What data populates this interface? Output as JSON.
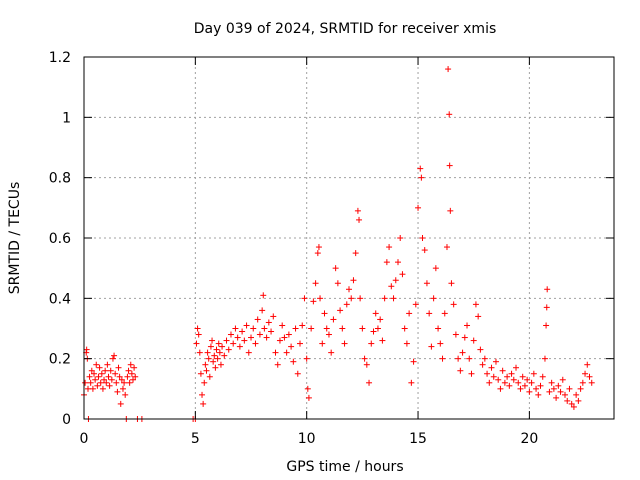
{
  "chart_data": {
    "type": "scatter",
    "title": "Day 039 of 2024, SRMTID for receiver xmis",
    "xlabel": "GPS time / hours",
    "ylabel": "SRMTID / TECUs",
    "xlim": [
      0,
      23.8
    ],
    "ylim": [
      0,
      1.2
    ],
    "xticks": [
      0,
      5,
      10,
      15,
      20
    ],
    "xtick_labels": [
      "0",
      "5",
      "10",
      "15",
      "20"
    ],
    "yticks": [
      0,
      0.2,
      0.4,
      0.6,
      0.8,
      1,
      1.2
    ],
    "ytick_labels": [
      "0",
      "0.2",
      "0.4",
      "0.6",
      "0.8",
      "1",
      "1.2"
    ],
    "grid": true,
    "marker": "+",
    "color": "#ff0000",
    "series": [
      {
        "name": "SRMTID",
        "points": [
          [
            0.0,
            0.08
          ],
          [
            0.05,
            0.12
          ],
          [
            0.1,
            0.22
          ],
          [
            0.12,
            0.23
          ],
          [
            0.15,
            0.2
          ],
          [
            0.18,
            0.1
          ],
          [
            0.2,
            0.0
          ],
          [
            0.25,
            0.14
          ],
          [
            0.3,
            0.12
          ],
          [
            0.35,
            0.16
          ],
          [
            0.4,
            0.1
          ],
          [
            0.45,
            0.15
          ],
          [
            0.5,
            0.13
          ],
          [
            0.55,
            0.18
          ],
          [
            0.6,
            0.11
          ],
          [
            0.65,
            0.14
          ],
          [
            0.7,
            0.17
          ],
          [
            0.75,
            0.12
          ],
          [
            0.8,
            0.15
          ],
          [
            0.85,
            0.1
          ],
          [
            0.9,
            0.13
          ],
          [
            0.95,
            0.16
          ],
          [
            1.0,
            0.12
          ],
          [
            1.05,
            0.18
          ],
          [
            1.1,
            0.14
          ],
          [
            1.15,
            0.11
          ],
          [
            1.2,
            0.16
          ],
          [
            1.25,
            0.13
          ],
          [
            1.3,
            0.2
          ],
          [
            1.35,
            0.21
          ],
          [
            1.4,
            0.15
          ],
          [
            1.45,
            0.12
          ],
          [
            1.5,
            0.09
          ],
          [
            1.55,
            0.17
          ],
          [
            1.6,
            0.14
          ],
          [
            1.65,
            0.05
          ],
          [
            1.7,
            0.13
          ],
          [
            1.75,
            0.1
          ],
          [
            1.8,
            0.12
          ],
          [
            1.85,
            0.08
          ],
          [
            1.9,
            0.0
          ],
          [
            1.95,
            0.14
          ],
          [
            2.0,
            0.16
          ],
          [
            2.05,
            0.12
          ],
          [
            2.1,
            0.18
          ],
          [
            2.15,
            0.15
          ],
          [
            2.2,
            0.13
          ],
          [
            2.25,
            0.17
          ],
          [
            2.3,
            0.14
          ],
          [
            2.4,
            0.0
          ],
          [
            2.6,
            0.0
          ],
          [
            4.9,
            0.0
          ],
          [
            5.0,
            0.0
          ],
          [
            5.05,
            0.25
          ],
          [
            5.1,
            0.3
          ],
          [
            5.15,
            0.28
          ],
          [
            5.2,
            0.22
          ],
          [
            5.25,
            0.15
          ],
          [
            5.3,
            0.08
          ],
          [
            5.35,
            0.05
          ],
          [
            5.4,
            0.12
          ],
          [
            5.45,
            0.18
          ],
          [
            5.5,
            0.16
          ],
          [
            5.55,
            0.22
          ],
          [
            5.6,
            0.2
          ],
          [
            5.65,
            0.14
          ],
          [
            5.7,
            0.24
          ],
          [
            5.75,
            0.26
          ],
          [
            5.8,
            0.19
          ],
          [
            5.85,
            0.21
          ],
          [
            5.9,
            0.17
          ],
          [
            5.95,
            0.23
          ],
          [
            6.0,
            0.2
          ],
          [
            6.05,
            0.25
          ],
          [
            6.1,
            0.22
          ],
          [
            6.15,
            0.18
          ],
          [
            6.2,
            0.24
          ],
          [
            6.3,
            0.21
          ],
          [
            6.4,
            0.26
          ],
          [
            6.5,
            0.23
          ],
          [
            6.6,
            0.28
          ],
          [
            6.7,
            0.25
          ],
          [
            6.8,
            0.3
          ],
          [
            6.9,
            0.27
          ],
          [
            7.0,
            0.24
          ],
          [
            7.1,
            0.29
          ],
          [
            7.2,
            0.26
          ],
          [
            7.3,
            0.31
          ],
          [
            7.4,
            0.22
          ],
          [
            7.5,
            0.27
          ],
          [
            7.6,
            0.3
          ],
          [
            7.7,
            0.25
          ],
          [
            7.8,
            0.33
          ],
          [
            7.9,
            0.28
          ],
          [
            8.0,
            0.36
          ],
          [
            8.05,
            0.41
          ],
          [
            8.1,
            0.3
          ],
          [
            8.2,
            0.27
          ],
          [
            8.3,
            0.32
          ],
          [
            8.4,
            0.29
          ],
          [
            8.5,
            0.34
          ],
          [
            8.6,
            0.22
          ],
          [
            8.7,
            0.18
          ],
          [
            8.8,
            0.26
          ],
          [
            8.9,
            0.31
          ],
          [
            9.0,
            0.27
          ],
          [
            9.1,
            0.22
          ],
          [
            9.2,
            0.28
          ],
          [
            9.3,
            0.24
          ],
          [
            9.4,
            0.19
          ],
          [
            9.5,
            0.3
          ],
          [
            9.6,
            0.15
          ],
          [
            9.7,
            0.25
          ],
          [
            9.8,
            0.31
          ],
          [
            9.9,
            0.4
          ],
          [
            10.0,
            0.2
          ],
          [
            10.05,
            0.1
          ],
          [
            10.1,
            0.07
          ],
          [
            10.2,
            0.3
          ],
          [
            10.3,
            0.39
          ],
          [
            10.4,
            0.45
          ],
          [
            10.5,
            0.55
          ],
          [
            10.55,
            0.57
          ],
          [
            10.6,
            0.4
          ],
          [
            10.7,
            0.25
          ],
          [
            10.8,
            0.35
          ],
          [
            10.9,
            0.3
          ],
          [
            11.0,
            0.28
          ],
          [
            11.1,
            0.22
          ],
          [
            11.2,
            0.33
          ],
          [
            11.3,
            0.5
          ],
          [
            11.4,
            0.45
          ],
          [
            11.5,
            0.36
          ],
          [
            11.6,
            0.3
          ],
          [
            11.7,
            0.25
          ],
          [
            11.8,
            0.38
          ],
          [
            11.9,
            0.43
          ],
          [
            12.0,
            0.4
          ],
          [
            12.1,
            0.46
          ],
          [
            12.2,
            0.55
          ],
          [
            12.3,
            0.69
          ],
          [
            12.35,
            0.66
          ],
          [
            12.4,
            0.4
          ],
          [
            12.5,
            0.3
          ],
          [
            12.6,
            0.2
          ],
          [
            12.7,
            0.18
          ],
          [
            12.8,
            0.12
          ],
          [
            12.9,
            0.25
          ],
          [
            13.0,
            0.29
          ],
          [
            13.1,
            0.35
          ],
          [
            13.2,
            0.3
          ],
          [
            13.3,
            0.33
          ],
          [
            13.4,
            0.26
          ],
          [
            13.5,
            0.4
          ],
          [
            13.6,
            0.52
          ],
          [
            13.7,
            0.57
          ],
          [
            13.8,
            0.44
          ],
          [
            13.9,
            0.4
          ],
          [
            14.0,
            0.46
          ],
          [
            14.1,
            0.52
          ],
          [
            14.2,
            0.6
          ],
          [
            14.3,
            0.48
          ],
          [
            14.4,
            0.3
          ],
          [
            14.5,
            0.25
          ],
          [
            14.6,
            0.35
          ],
          [
            14.7,
            0.12
          ],
          [
            14.8,
            0.19
          ],
          [
            14.9,
            0.38
          ],
          [
            15.0,
            0.7
          ],
          [
            15.1,
            0.83
          ],
          [
            15.15,
            0.8
          ],
          [
            15.2,
            0.6
          ],
          [
            15.3,
            0.56
          ],
          [
            15.4,
            0.45
          ],
          [
            15.5,
            0.35
          ],
          [
            15.6,
            0.24
          ],
          [
            15.7,
            0.4
          ],
          [
            15.8,
            0.5
          ],
          [
            15.9,
            0.3
          ],
          [
            16.0,
            0.25
          ],
          [
            16.1,
            0.2
          ],
          [
            16.2,
            0.35
          ],
          [
            16.3,
            0.57
          ],
          [
            16.35,
            1.16
          ],
          [
            16.4,
            1.01
          ],
          [
            16.42,
            0.84
          ],
          [
            16.45,
            0.69
          ],
          [
            16.5,
            0.45
          ],
          [
            16.6,
            0.38
          ],
          [
            16.7,
            0.28
          ],
          [
            16.8,
            0.2
          ],
          [
            16.9,
            0.16
          ],
          [
            17.0,
            0.22
          ],
          [
            17.1,
            0.27
          ],
          [
            17.2,
            0.31
          ],
          [
            17.3,
            0.2
          ],
          [
            17.4,
            0.15
          ],
          [
            17.5,
            0.26
          ],
          [
            17.6,
            0.38
          ],
          [
            17.7,
            0.34
          ],
          [
            17.8,
            0.23
          ],
          [
            17.9,
            0.18
          ],
          [
            18.0,
            0.2
          ],
          [
            18.1,
            0.15
          ],
          [
            18.2,
            0.12
          ],
          [
            18.3,
            0.17
          ],
          [
            18.4,
            0.14
          ],
          [
            18.5,
            0.19
          ],
          [
            18.6,
            0.13
          ],
          [
            18.7,
            0.1
          ],
          [
            18.8,
            0.16
          ],
          [
            18.9,
            0.12
          ],
          [
            19.0,
            0.14
          ],
          [
            19.1,
            0.11
          ],
          [
            19.2,
            0.15
          ],
          [
            19.3,
            0.13
          ],
          [
            19.4,
            0.17
          ],
          [
            19.5,
            0.12
          ],
          [
            19.6,
            0.1
          ],
          [
            19.7,
            0.14
          ],
          [
            19.8,
            0.11
          ],
          [
            19.9,
            0.13
          ],
          [
            20.0,
            0.09
          ],
          [
            20.1,
            0.12
          ],
          [
            20.2,
            0.15
          ],
          [
            20.3,
            0.1
          ],
          [
            20.4,
            0.08
          ],
          [
            20.5,
            0.11
          ],
          [
            20.6,
            0.14
          ],
          [
            20.7,
            0.2
          ],
          [
            20.75,
            0.31
          ],
          [
            20.78,
            0.37
          ],
          [
            20.8,
            0.43
          ],
          [
            20.9,
            0.09
          ],
          [
            21.0,
            0.12
          ],
          [
            21.1,
            0.1
          ],
          [
            21.2,
            0.07
          ],
          [
            21.3,
            0.11
          ],
          [
            21.4,
            0.09
          ],
          [
            21.5,
            0.13
          ],
          [
            21.6,
            0.08
          ],
          [
            21.7,
            0.06
          ],
          [
            21.8,
            0.1
          ],
          [
            21.9,
            0.05
          ],
          [
            22.0,
            0.04
          ],
          [
            22.1,
            0.08
          ],
          [
            22.2,
            0.06
          ],
          [
            22.3,
            0.1
          ],
          [
            22.4,
            0.12
          ],
          [
            22.5,
            0.15
          ],
          [
            22.6,
            0.18
          ],
          [
            22.7,
            0.14
          ],
          [
            22.8,
            0.12
          ]
        ]
      }
    ]
  }
}
